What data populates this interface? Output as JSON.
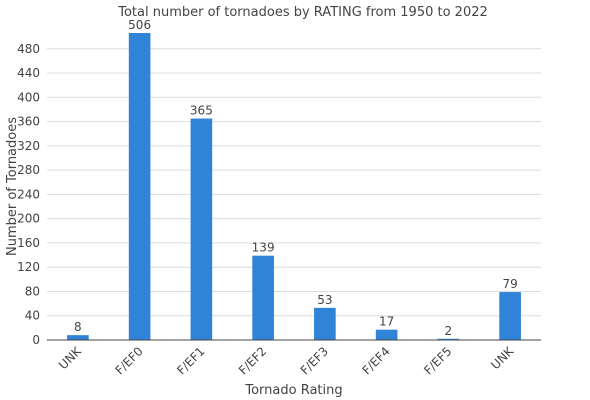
{
  "chart_data": {
    "type": "bar",
    "title": "Total number of tornadoes by RATING from 1950 to 2022",
    "xlabel": "Tornado Rating",
    "ylabel": "Number of Tornadoes",
    "categories": [
      "UNK",
      "F/EF0",
      "F/EF1",
      "F/EF2",
      "F/EF3",
      "F/EF4",
      "F/EF5",
      "UNK"
    ],
    "values": [
      8,
      506,
      365,
      139,
      53,
      17,
      2,
      79
    ],
    "ylim": [
      0,
      506
    ],
    "yticks": [
      0,
      40,
      80,
      120,
      160,
      200,
      240,
      280,
      320,
      360,
      400,
      440,
      480
    ],
    "grid": true,
    "legend": "none",
    "bar_color": "#2f84d8"
  }
}
